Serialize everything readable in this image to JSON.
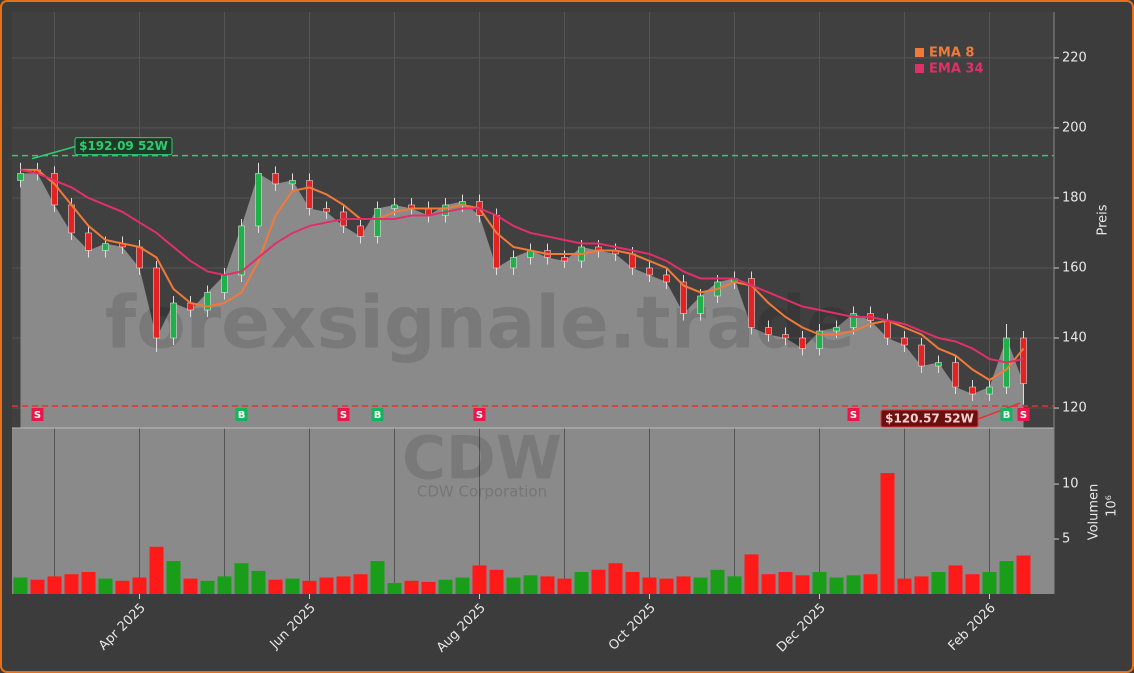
{
  "chart_data": [
    {
      "type": "candlestick",
      "watermark": "forexsignale.trade",
      "symbol": "CDW",
      "company": "CDW Corporation",
      "ylabel": "Preis",
      "ylim": [
        114.3,
        233.1
      ],
      "yticks": [
        120,
        140,
        160,
        180,
        200,
        220
      ],
      "grid": true,
      "up_color": "#1fb04a",
      "down_color": "#e52222",
      "area_color": "#8a8a8a",
      "open": [
        185,
        188,
        187,
        178,
        170,
        165,
        167,
        166,
        160,
        140,
        150,
        148,
        153,
        158,
        172,
        187,
        184,
        185,
        177,
        176,
        172,
        169,
        177,
        178,
        177,
        175,
        178,
        179,
        175,
        160,
        163,
        165,
        163,
        162,
        166,
        165,
        164,
        160,
        158,
        156,
        147,
        152,
        156,
        157,
        143,
        141,
        140,
        137,
        142,
        143,
        147,
        145,
        140,
        138,
        132,
        133,
        126,
        124,
        126,
        140
      ],
      "high": [
        190,
        190,
        189,
        180,
        172,
        169,
        169,
        168,
        162,
        152,
        152,
        155,
        160,
        174,
        190,
        189,
        187,
        187,
        179,
        178,
        174,
        179,
        180,
        180,
        179,
        180,
        181,
        181,
        177,
        165,
        167,
        167,
        165,
        168,
        168,
        167,
        166,
        162,
        160,
        158,
        154,
        158,
        159,
        159,
        145,
        143,
        142,
        144,
        145,
        149,
        149,
        147,
        142,
        140,
        135,
        135,
        128,
        128,
        144,
        142
      ],
      "low": [
        183,
        185,
        176,
        168,
        163,
        163,
        164,
        158,
        136,
        138,
        146,
        146,
        151,
        156,
        170,
        182,
        182,
        175,
        174,
        170,
        167,
        167,
        175,
        175,
        173,
        173,
        176,
        173,
        158,
        158,
        161,
        161,
        160,
        160,
        163,
        162,
        158,
        156,
        154,
        145,
        145,
        150,
        154,
        141,
        139,
        138,
        135,
        135,
        140,
        141,
        143,
        138,
        136,
        130,
        130,
        124,
        122,
        122,
        124,
        121
      ],
      "close": [
        187,
        187,
        178,
        170,
        165,
        167,
        166,
        160,
        140,
        150,
        148,
        153,
        158,
        172,
        187,
        184,
        185,
        177,
        176,
        172,
        169,
        177,
        178,
        177,
        175,
        178,
        179,
        175,
        160,
        163,
        165,
        163,
        162,
        166,
        165,
        164,
        160,
        158,
        156,
        147,
        152,
        156,
        157,
        143,
        141,
        140,
        137,
        142,
        143,
        147,
        145,
        140,
        138,
        132,
        133,
        126,
        124,
        126,
        140,
        127
      ],
      "series": [
        {
          "name": "EMA 8",
          "color": "#f07a3a",
          "values": [
            188,
            188,
            184,
            178,
            172,
            168,
            167,
            166,
            163,
            154,
            150,
            149,
            150,
            153,
            162,
            175,
            182,
            183,
            181,
            178,
            174,
            174,
            176,
            177,
            177,
            177,
            178,
            177,
            170,
            166,
            165,
            164,
            164,
            164,
            165,
            165,
            164,
            162,
            160,
            155,
            153,
            154,
            156,
            155,
            150,
            146,
            143,
            141,
            141,
            142,
            144,
            145,
            143,
            141,
            137,
            135,
            131,
            128,
            131,
            137
          ]
        },
        {
          "name": "EMA 34",
          "color": "#e0306a",
          "values": [
            188,
            187,
            185,
            183,
            180,
            178,
            176,
            173,
            170,
            166,
            162,
            159,
            158,
            159,
            163,
            167,
            170,
            172,
            173,
            174,
            174,
            174,
            174,
            175,
            175,
            176,
            177,
            177,
            175,
            172,
            170,
            169,
            168,
            167,
            167,
            166,
            165,
            164,
            162,
            159,
            157,
            157,
            157,
            155,
            153,
            151,
            149,
            148,
            147,
            146,
            146,
            145,
            144,
            142,
            140,
            139,
            137,
            134,
            133,
            134
          ]
        }
      ],
      "hlines": [
        {
          "value": 192.09,
          "label": "$192.09 52W",
          "color": "#2ecc71"
        },
        {
          "value": 120.57,
          "label": "$120.57 52W",
          "color": "#e83030"
        }
      ],
      "signals": [
        null,
        "S",
        null,
        null,
        null,
        null,
        null,
        null,
        null,
        null,
        null,
        null,
        null,
        "B",
        null,
        null,
        null,
        null,
        null,
        "S",
        null,
        "B",
        null,
        null,
        null,
        null,
        null,
        "S",
        null,
        null,
        null,
        null,
        null,
        null,
        null,
        null,
        null,
        null,
        null,
        null,
        null,
        null,
        null,
        null,
        null,
        null,
        null,
        null,
        null,
        "S",
        null,
        null,
        null,
        null,
        null,
        null,
        null,
        null,
        "B",
        "S"
      ]
    },
    {
      "type": "bar",
      "ylabel": "Volumen",
      "multiplier": "10⁶",
      "ylim": [
        0,
        15.1
      ],
      "yticks": [
        5,
        10
      ],
      "categories": [
        null,
        null,
        null,
        null,
        null,
        null,
        null,
        "Apr 2025",
        null,
        null,
        null,
        null,
        null,
        null,
        null,
        null,
        null,
        "Jun 2025",
        null,
        null,
        null,
        null,
        null,
        null,
        null,
        null,
        null,
        "Aug 2025",
        null,
        null,
        null,
        null,
        null,
        null,
        null,
        null,
        null,
        "Oct 2025",
        null,
        null,
        null,
        null,
        null,
        null,
        null,
        null,
        null,
        "Dec 2025",
        null,
        null,
        null,
        null,
        null,
        null,
        null,
        null,
        null,
        "Feb 2026",
        null,
        null
      ],
      "values": [
        1.5,
        1.3,
        1.6,
        1.8,
        2.0,
        1.4,
        1.2,
        1.5,
        4.3,
        3.0,
        1.4,
        1.2,
        1.6,
        2.8,
        2.1,
        1.3,
        1.4,
        1.2,
        1.5,
        1.6,
        1.8,
        3.0,
        1.0,
        1.2,
        1.1,
        1.3,
        1.5,
        2.6,
        2.2,
        1.5,
        1.7,
        1.6,
        1.4,
        2.0,
        2.2,
        2.8,
        2.0,
        1.5,
        1.4,
        1.6,
        1.5,
        2.2,
        1.6,
        3.6,
        1.8,
        2.0,
        1.7,
        2.0,
        1.5,
        1.7,
        1.8,
        11.0,
        1.4,
        1.6,
        2.0,
        2.6,
        1.8,
        2.0,
        3.0,
        3.5
      ]
    }
  ]
}
